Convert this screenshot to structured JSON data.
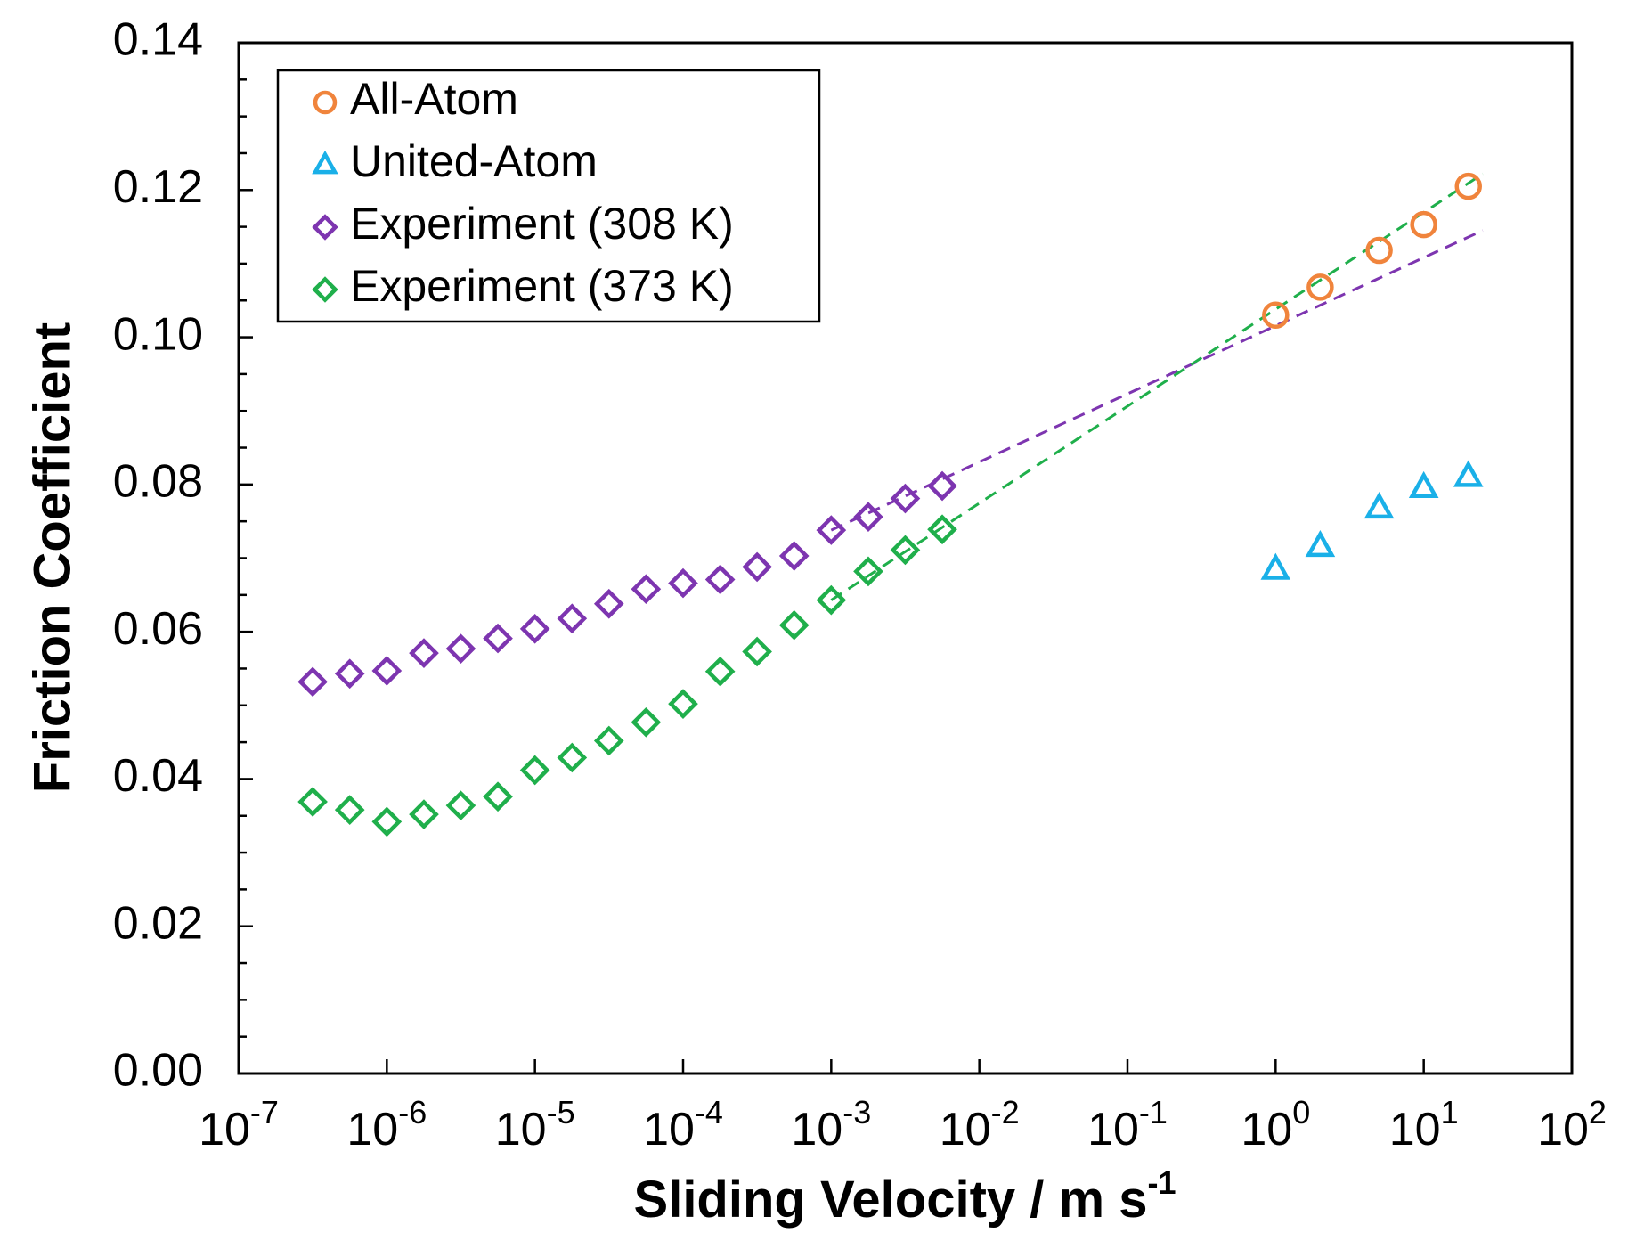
{
  "chart_data": {
    "type": "scatter",
    "title": "",
    "xlabel": "Sliding Velocity / m s",
    "xlabel_superscript": "-1",
    "ylabel": "Friction Coefficient",
    "xscale": "log",
    "xlim": [
      1e-07,
      100
    ],
    "ylim": [
      0,
      0.14
    ],
    "x_ticks": [
      {
        "base": "10",
        "exp": "-7",
        "value": 1e-07
      },
      {
        "base": "10",
        "exp": "-6",
        "value": 1e-06
      },
      {
        "base": "10",
        "exp": "-5",
        "value": 1e-05
      },
      {
        "base": "10",
        "exp": "-4",
        "value": 0.0001
      },
      {
        "base": "10",
        "exp": "-3",
        "value": 0.001
      },
      {
        "base": "10",
        "exp": "-2",
        "value": 0.01
      },
      {
        "base": "10",
        "exp": "-1",
        "value": 0.1
      },
      {
        "base": "10",
        "exp": "0",
        "value": 1
      },
      {
        "base": "10",
        "exp": "1",
        "value": 10
      },
      {
        "base": "10",
        "exp": "2",
        "value": 100
      }
    ],
    "y_ticks": [
      "0.00",
      "0.02",
      "0.04",
      "0.06",
      "0.08",
      "0.10",
      "0.12",
      "0.14"
    ],
    "legend_position": "top-left",
    "series": [
      {
        "name": "All-Atom",
        "marker": "circle",
        "color": "#f0843c",
        "x": [
          1,
          2,
          5,
          10,
          20
        ],
        "y": [
          0.103,
          0.1068,
          0.1118,
          0.1153,
          0.1205
        ]
      },
      {
        "name": "United-Atom",
        "marker": "triangle",
        "color": "#1ab0e8",
        "x": [
          1,
          2,
          5,
          10,
          20
        ],
        "y": [
          0.0685,
          0.0716,
          0.0768,
          0.0796,
          0.0811
        ]
      },
      {
        "name": "Experiment (308 K)",
        "marker": "diamond",
        "color": "#7d35b0",
        "x": [
          3.16e-07,
          5.62e-07,
          1e-06,
          1.78e-06,
          3.16e-06,
          5.62e-06,
          1e-05,
          1.78e-05,
          3.16e-05,
          5.62e-05,
          0.0001,
          0.000178,
          0.000316,
          0.000562,
          0.001,
          0.00178,
          0.00316,
          0.00562
        ],
        "y": [
          0.0532,
          0.0543,
          0.0547,
          0.0571,
          0.0577,
          0.0591,
          0.0604,
          0.0618,
          0.0638,
          0.0658,
          0.0666,
          0.0671,
          0.0688,
          0.0703,
          0.0738,
          0.0756,
          0.0781,
          0.0798
        ]
      },
      {
        "name": "Experiment (373 K)",
        "marker": "diamond",
        "color": "#1faf4b",
        "x": [
          3.16e-07,
          5.62e-07,
          1e-06,
          1.78e-06,
          3.16e-06,
          5.62e-06,
          1e-05,
          1.78e-05,
          3.16e-05,
          5.62e-05,
          0.0001,
          0.000178,
          0.000316,
          0.000562,
          0.001,
          0.00178,
          0.00316,
          0.00562
        ],
        "y": [
          0.0369,
          0.0358,
          0.0342,
          0.0352,
          0.0364,
          0.0376,
          0.0412,
          0.0429,
          0.0452,
          0.0477,
          0.0502,
          0.0546,
          0.0573,
          0.0609,
          0.0643,
          0.0682,
          0.0711,
          0.0739
        ]
      }
    ],
    "trendlines": [
      {
        "name": "Experiment (308 K) fit",
        "color": "#7d35b0",
        "dash": "dashed",
        "x": [
          0.001,
          25
        ],
        "y": [
          0.0738,
          0.1145
        ]
      },
      {
        "name": "Experiment (373 K) fit",
        "color": "#1faf4b",
        "dash": "dashed",
        "x": [
          0.001,
          25
        ],
        "y": [
          0.0643,
          0.1222
        ]
      }
    ]
  }
}
